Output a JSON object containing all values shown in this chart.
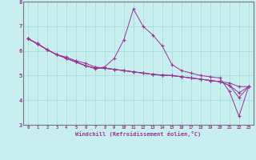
{
  "xlabel": "Windchill (Refroidissement éolien,°C)",
  "background_color": "#c8eef0",
  "line_color": "#993399",
  "grid_color": "#aadddd",
  "x_values": [
    0,
    1,
    2,
    3,
    4,
    5,
    6,
    7,
    8,
    9,
    10,
    11,
    12,
    13,
    14,
    15,
    16,
    17,
    18,
    19,
    20,
    21,
    22,
    23
  ],
  "line1": [
    6.5,
    6.3,
    6.05,
    5.85,
    5.75,
    5.6,
    5.5,
    5.35,
    5.3,
    5.25,
    5.2,
    5.15,
    5.1,
    5.05,
    5.0,
    5.0,
    4.95,
    4.9,
    4.85,
    4.8,
    4.75,
    4.7,
    4.55,
    4.55
  ],
  "line2": [
    6.5,
    6.3,
    6.05,
    5.85,
    5.7,
    5.55,
    5.4,
    5.28,
    5.35,
    5.7,
    6.45,
    7.7,
    7.0,
    6.65,
    6.2,
    5.45,
    5.2,
    5.1,
    5.0,
    4.95,
    4.9,
    4.35,
    3.35,
    4.55
  ],
  "line3": [
    6.5,
    6.28,
    6.05,
    5.85,
    5.7,
    5.55,
    5.4,
    5.3,
    5.3,
    5.25,
    5.2,
    5.15,
    5.1,
    5.05,
    5.02,
    5.0,
    4.95,
    4.9,
    4.85,
    4.8,
    4.75,
    4.6,
    4.1,
    4.55
  ],
  "line4": [
    6.5,
    6.28,
    6.05,
    5.85,
    5.7,
    5.55,
    5.4,
    5.3,
    5.3,
    5.25,
    5.2,
    5.15,
    5.1,
    5.05,
    5.02,
    5.0,
    4.95,
    4.9,
    4.85,
    4.8,
    4.75,
    4.6,
    4.3,
    4.55
  ],
  "ylim": [
    3,
    8
  ],
  "xlim": [
    -0.5,
    23.5
  ],
  "yticks": [
    3,
    4,
    5,
    6,
    7,
    8
  ],
  "xticks": [
    0,
    1,
    2,
    3,
    4,
    5,
    6,
    7,
    8,
    9,
    10,
    11,
    12,
    13,
    14,
    15,
    16,
    17,
    18,
    19,
    20,
    21,
    22,
    23
  ]
}
